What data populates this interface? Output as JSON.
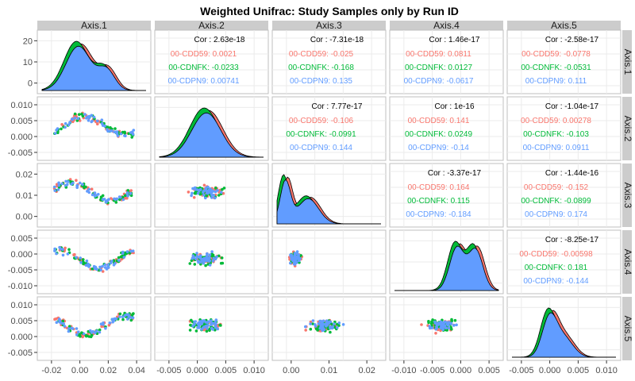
{
  "chart_data": {
    "type": "pairs",
    "title": "Weighted Unifrac: Study Samples only by Run ID",
    "variables": [
      "Axis.1",
      "Axis.2",
      "Axis.3",
      "Axis.4",
      "Axis.5"
    ],
    "series": [
      {
        "name": "00-CDD59",
        "color": "#F8766D"
      },
      {
        "name": "00-CDNFK",
        "color": "#00BA38"
      },
      {
        "name": "00-CDPN9",
        "color": "#619CFF"
      }
    ],
    "x_ticks": [
      [
        "-0.02",
        "0.00",
        "0.02",
        "0.04"
      ],
      [
        "-0.005",
        "0.000",
        "0.005",
        "0.010"
      ],
      [
        "0.00",
        "0.01",
        "0.02"
      ],
      [
        "-0.010",
        "-0.005",
        "0.000",
        "0.005"
      ],
      [
        "-0.005",
        "0.000",
        "0.005",
        "0.010"
      ]
    ],
    "y_ticks": [
      [
        "0",
        "10",
        "20"
      ],
      [
        "-0.005",
        "0.000",
        "0.005",
        "0.010"
      ],
      [
        "0.00",
        "0.01",
        "0.02"
      ],
      [
        "-0.010",
        "-0.005",
        "0.000",
        "0.005"
      ],
      [
        "-0.005",
        "0.000",
        "0.005",
        "0.010"
      ]
    ],
    "correlations": [
      {
        "row": 1,
        "col": 2,
        "overall": "Cor : 2.63e-18",
        "groups": [
          "00-CDD59: 0.0021",
          "00-CDNFK: -0.0233",
          "00-CDPN9: 0.00741"
        ]
      },
      {
        "row": 1,
        "col": 3,
        "overall": "Cor : -7.31e-18",
        "groups": [
          "00-CDD59: -0.025",
          "00-CDNFK: -0.168",
          "00-CDPN9: 0.135"
        ]
      },
      {
        "row": 1,
        "col": 4,
        "overall": "Cor : 1.46e-17",
        "groups": [
          "00-CDD59: 0.0811",
          "00-CDNFK: 0.0127",
          "00-CDPN9: -0.0617"
        ]
      },
      {
        "row": 1,
        "col": 5,
        "overall": "Cor : -2.58e-17",
        "groups": [
          "00-CDD59: -0.0778",
          "00-CDNFK: -0.0531",
          "00-CDPN9: 0.111"
        ]
      },
      {
        "row": 2,
        "col": 3,
        "overall": "Cor : 7.77e-17",
        "groups": [
          "00-CDD59: -0.106",
          "00-CDNFK: -0.0991",
          "00-CDPN9: 0.144"
        ]
      },
      {
        "row": 2,
        "col": 4,
        "overall": "Cor : 1e-16",
        "groups": [
          "00-CDD59: 0.141",
          "00-CDNFK: 0.0249",
          "00-CDPN9: -0.14"
        ]
      },
      {
        "row": 2,
        "col": 5,
        "overall": "Cor : -1.04e-17",
        "groups": [
          "00-CDD59: 0.00278",
          "00-CDNFK: -0.103",
          "00-CDPN9: 0.0911"
        ]
      },
      {
        "row": 3,
        "col": 4,
        "overall": "Cor : -3.37e-17",
        "groups": [
          "00-CDD59: 0.164",
          "00-CDNFK: 0.115",
          "00-CDPN9: -0.184"
        ]
      },
      {
        "row": 3,
        "col": 5,
        "overall": "Cor : -1.44e-16",
        "groups": [
          "00-CDD59: -0.152",
          "00-CDNFK: -0.0899",
          "00-CDPN9: 0.174"
        ]
      },
      {
        "row": 4,
        "col": 5,
        "overall": "Cor : -8.25e-17",
        "groups": [
          "00-CDD59: -0.00598",
          "00-CDNFK: 0.181",
          "00-CDPN9: -0.144"
        ]
      }
    ]
  }
}
